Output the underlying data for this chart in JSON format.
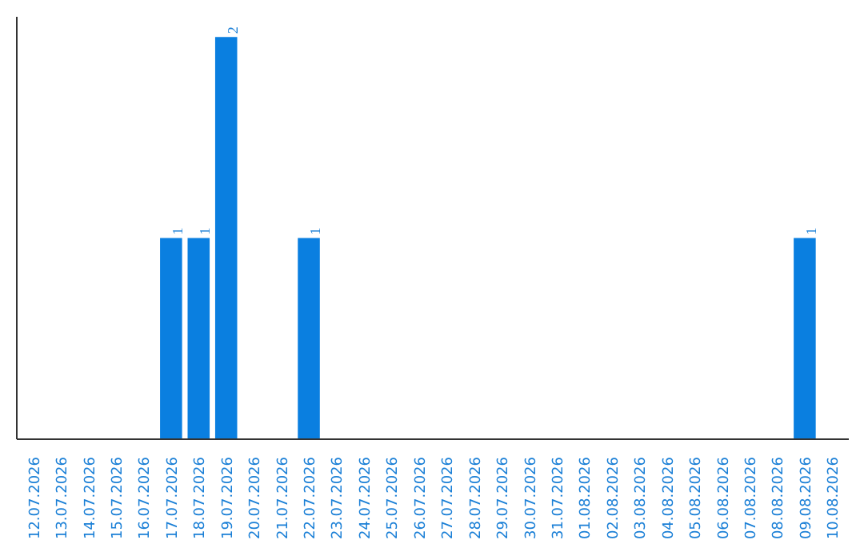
{
  "chart_data": {
    "type": "bar",
    "categories": [
      "12.07.2026",
      "13.07.2026",
      "14.07.2026",
      "15.07.2026",
      "16.07.2026",
      "17.07.2026",
      "18.07.2026",
      "19.07.2026",
      "20.07.2026",
      "21.07.2026",
      "22.07.2026",
      "23.07.2026",
      "24.07.2026",
      "25.07.2026",
      "26.07.2026",
      "27.07.2026",
      "28.07.2026",
      "29.07.2026",
      "30.07.2026",
      "31.07.2026",
      "01.08.2026",
      "02.08.2026",
      "03.08.2026",
      "04.08.2026",
      "05.08.2026",
      "06.08.2026",
      "07.08.2026",
      "08.08.2026",
      "09.08.2026",
      "10.08.2026"
    ],
    "values": [
      0,
      0,
      0,
      0,
      0,
      1,
      1,
      2,
      0,
      0,
      1,
      0,
      0,
      0,
      0,
      0,
      0,
      0,
      0,
      0,
      0,
      0,
      0,
      0,
      0,
      0,
      0,
      0,
      1,
      0
    ],
    "value_labels": [
      null,
      null,
      null,
      null,
      null,
      "1",
      "1",
      "2",
      null,
      null,
      "1",
      null,
      null,
      null,
      null,
      null,
      null,
      null,
      null,
      null,
      null,
      null,
      null,
      null,
      null,
      null,
      null,
      null,
      "1",
      null
    ],
    "color": "#0a7fe0",
    "tick_labels": "x",
    "grid": false
  }
}
